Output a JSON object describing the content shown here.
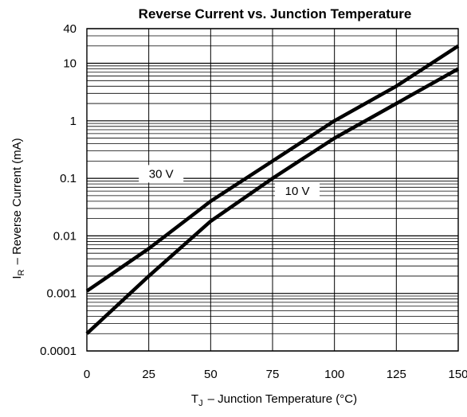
{
  "chart_data": {
    "type": "line",
    "title": "Reverse Current vs. Junction Temperature",
    "xlabel": {
      "symbol": "T",
      "subscript": "J",
      "text": "–  Junction Temperature (°C)"
    },
    "ylabel": {
      "symbol": "I",
      "subscript": "R",
      "text": "–  Reverse Current (mA)"
    },
    "x_scale": "linear",
    "y_scale": "log",
    "xlim": [
      0,
      150
    ],
    "ylim": [
      0.0001,
      40
    ],
    "x_ticks": [
      0,
      25,
      50,
      75,
      100,
      125,
      150
    ],
    "x_tick_labels": [
      "0",
      "25",
      "50",
      "75",
      "100",
      "125",
      "150"
    ],
    "y_tick_labels": [
      {
        "value": 40,
        "label": "40"
      },
      {
        "value": 10,
        "label": "10"
      },
      {
        "value": 1,
        "label": "1"
      },
      {
        "value": 0.1,
        "label": "0.1"
      },
      {
        "value": 0.01,
        "label": "0.01"
      },
      {
        "value": 0.001,
        "label": "0.001"
      },
      {
        "value": 0.0001,
        "label": "0.0001"
      }
    ],
    "grid": true,
    "series": [
      {
        "name": "30 V",
        "x": [
          0,
          25,
          50,
          75,
          100,
          125,
          150
        ],
        "y": [
          0.0011,
          0.006,
          0.04,
          0.2,
          1.0,
          4.0,
          20.0
        ]
      },
      {
        "name": "10 V",
        "x": [
          0,
          25,
          50,
          75,
          100,
          125,
          150
        ],
        "y": [
          0.0002,
          0.002,
          0.018,
          0.1,
          0.5,
          2.0,
          8.0
        ]
      }
    ]
  }
}
